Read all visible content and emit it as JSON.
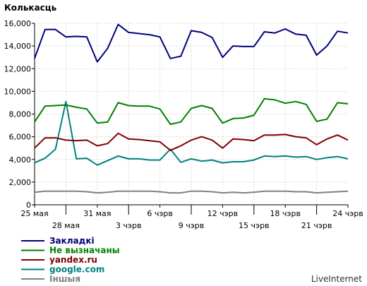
{
  "chart_data": {
    "type": "line",
    "title": "Колькасць",
    "xlabel": "",
    "ylabel": "",
    "ylim": [
      0,
      16000
    ],
    "y_ticks": [
      0,
      2000,
      4000,
      6000,
      8000,
      10000,
      12000,
      14000,
      16000
    ],
    "y_tick_labels": [
      "0",
      "2,000",
      "4,000",
      "6,000",
      "8,000",
      "10,000",
      "12,000",
      "14,000",
      "16,000"
    ],
    "x_tick_labels": [
      {
        "index": 0,
        "label": "25 мая",
        "row": 1
      },
      {
        "index": 3,
        "label": "28 мая",
        "row": 2
      },
      {
        "index": 6,
        "label": "31 мая",
        "row": 1
      },
      {
        "index": 9,
        "label": "3 чэрв",
        "row": 2
      },
      {
        "index": 12,
        "label": "6 чэрв",
        "row": 1
      },
      {
        "index": 15,
        "label": "9 чэрв",
        "row": 2
      },
      {
        "index": 18,
        "label": "12 чэрв",
        "row": 1
      },
      {
        "index": 21,
        "label": "15 чэрв",
        "row": 2
      },
      {
        "index": 24,
        "label": "18 чэрв",
        "row": 1
      },
      {
        "index": 27,
        "label": "21 чэрв",
        "row": 2
      },
      {
        "index": 30,
        "label": "24 чэрв",
        "row": 1
      }
    ],
    "grid": true,
    "legend": "bottom-left",
    "brand": "LiveInternet",
    "series": [
      {
        "name": "Закладкі",
        "color": "#000080",
        "values": [
          12900,
          15450,
          15450,
          14800,
          14850,
          14800,
          12600,
          13800,
          15900,
          15200,
          15100,
          15000,
          14800,
          12900,
          13100,
          15350,
          15200,
          14750,
          13000,
          14000,
          13950,
          13950,
          15250,
          15150,
          15500,
          15050,
          14950,
          13200,
          14000,
          15300,
          15150
        ]
      },
      {
        "name": "Не вызначаны",
        "color": "#008000",
        "values": [
          7300,
          8700,
          8750,
          8800,
          8600,
          8450,
          7200,
          7300,
          9000,
          8750,
          8700,
          8700,
          8450,
          7100,
          7300,
          8500,
          8750,
          8500,
          7200,
          7600,
          7650,
          7900,
          9350,
          9250,
          8950,
          9100,
          8850,
          7350,
          7550,
          9000,
          8900
        ]
      },
      {
        "name": "yandex.ru",
        "color": "#800000",
        "values": [
          5000,
          5900,
          5900,
          5700,
          5650,
          5700,
          5200,
          5400,
          6300,
          5800,
          5750,
          5650,
          5550,
          4800,
          5200,
          5700,
          6000,
          5700,
          5000,
          5800,
          5750,
          5650,
          6150,
          6150,
          6200,
          6000,
          5900,
          5300,
          5800,
          6150,
          5700
        ]
      },
      {
        "name": "google.com",
        "color": "#008080",
        "values": [
          3700,
          4100,
          4900,
          9100,
          4050,
          4100,
          3500,
          3900,
          4300,
          4050,
          4050,
          3950,
          3950,
          4900,
          3750,
          4050,
          3850,
          3950,
          3700,
          3800,
          3800,
          3950,
          4300,
          4250,
          4300,
          4200,
          4250,
          4000,
          4150,
          4250,
          4050
        ]
      },
      {
        "name": "Іншыя",
        "color": "#808080",
        "values": [
          1100,
          1200,
          1200,
          1200,
          1200,
          1150,
          1050,
          1100,
          1200,
          1200,
          1200,
          1200,
          1150,
          1050,
          1050,
          1200,
          1200,
          1150,
          1050,
          1100,
          1050,
          1100,
          1200,
          1200,
          1200,
          1150,
          1150,
          1050,
          1100,
          1150,
          1200
        ]
      }
    ]
  }
}
